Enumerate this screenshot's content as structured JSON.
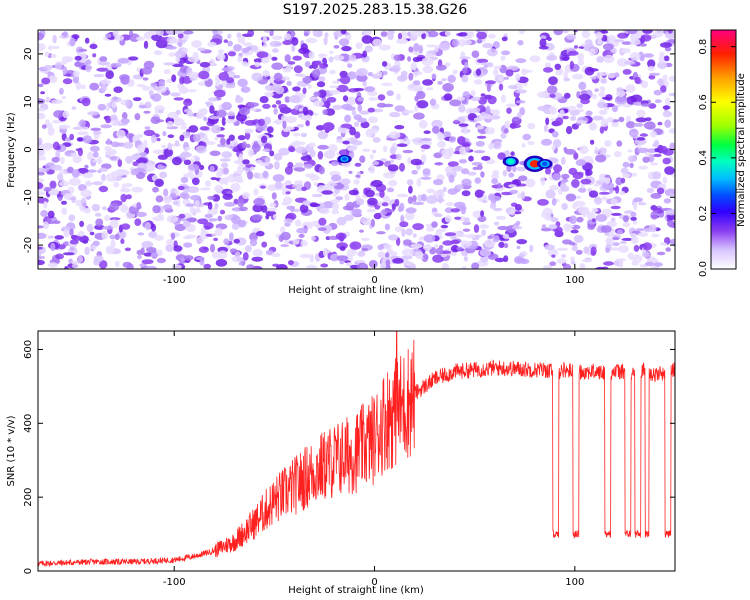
{
  "title": "S197.2025.283.15.38.G26",
  "chart_data": [
    {
      "type": "heatmap",
      "xlabel": "Height of straight line (km)",
      "ylabel": "Frequency (Hz)",
      "xlim": [
        -168,
        150
      ],
      "ylim": [
        -25,
        25
      ],
      "xticks": [
        -100,
        0,
        100
      ],
      "yticks": [
        -20,
        -10,
        0,
        10,
        20
      ],
      "colorbar": {
        "label": "Normalized spectral amplitude",
        "range": [
          0,
          0.86
        ],
        "ticks": [
          0.0,
          0.2,
          0.4,
          0.6,
          0.8
        ],
        "colors": [
          "#ffffff",
          "#d8c4ff",
          "#8a3df0",
          "#3000ff",
          "#0050ff",
          "#00c0ff",
          "#00ffc0",
          "#00ff40",
          "#a0ff00",
          "#ffff00",
          "#ffa000",
          "#ff2000",
          "#ff0080"
        ]
      },
      "peaks": [
        {
          "x": 80,
          "y": -3,
          "amplitude": 0.86
        },
        {
          "x": 68,
          "y": -2.5,
          "amplitude": 0.35
        },
        {
          "x": 85,
          "y": -3,
          "amplitude": 0.3
        },
        {
          "x": -15,
          "y": -2,
          "amplitude": 0.2
        }
      ]
    },
    {
      "type": "line",
      "xlabel": "Height of straight line (km)",
      "ylabel": "SNR (10 * v/v)",
      "xlim": [
        -168,
        150
      ],
      "ylim": [
        0,
        650
      ],
      "xticks": [
        -100,
        0,
        100
      ],
      "yticks": [
        0,
        200,
        400,
        600
      ],
      "series": [
        {
          "color": "#ff2020",
          "x": [
            -168,
            -140,
            -120,
            -100,
            -90,
            -80,
            -70,
            -60,
            -50,
            -40,
            -30,
            -20,
            -10,
            0,
            5,
            10,
            15,
            20,
            30,
            40,
            50,
            60,
            70,
            80,
            85,
            90,
            95,
            100,
            105,
            110,
            115,
            120,
            125,
            130,
            135,
            140,
            145,
            150
          ],
          "values": [
            20,
            25,
            25,
            30,
            40,
            55,
            80,
            130,
            190,
            230,
            270,
            300,
            320,
            360,
            410,
            430,
            450,
            480,
            520,
            540,
            545,
            550,
            548,
            545,
            545,
            540,
            545,
            540,
            540,
            540,
            535,
            540,
            540,
            535,
            545,
            530,
            540,
            545
          ]
        }
      ],
      "dropouts": [
        {
          "from": 89,
          "to": 92,
          "value": 100
        },
        {
          "from": 99,
          "to": 102,
          "value": 100
        },
        {
          "from": 115,
          "to": 118,
          "value": 100
        },
        {
          "from": 125,
          "to": 128,
          "value": 100
        },
        {
          "from": 130,
          "to": 133,
          "value": 100
        },
        {
          "from": 135,
          "to": 137,
          "value": 100
        },
        {
          "from": 145,
          "to": 148,
          "value": 100
        }
      ],
      "spike": {
        "x": 11,
        "value": 650
      }
    }
  ]
}
